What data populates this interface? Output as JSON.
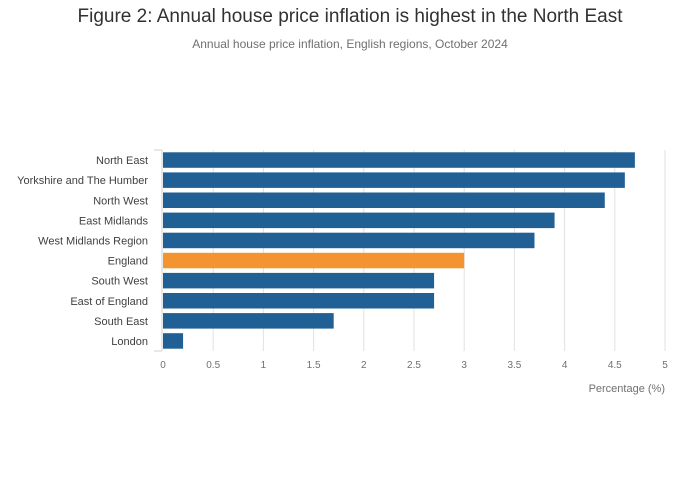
{
  "title": "Figure 2: Annual house price inflation is highest in the North East",
  "subtitle": "Annual house price inflation, English regions, October 2024",
  "colors": {
    "bar": "#206095",
    "highlight": "#f39431",
    "grid": "#e2e2e3"
  },
  "chart_data": {
    "type": "bar",
    "orientation": "horizontal",
    "categories": [
      "North East",
      "Yorkshire and The Humber",
      "North West",
      "East Midlands",
      "West Midlands Region",
      "England",
      "South West",
      "East of England",
      "South East",
      "London"
    ],
    "values": [
      4.7,
      4.6,
      4.4,
      3.9,
      3.7,
      3.0,
      2.7,
      2.7,
      1.7,
      0.2
    ],
    "highlight": "England",
    "xlabel": "Percentage (%)",
    "ylabel": "",
    "xlim": [
      0,
      5
    ],
    "xticks": [
      "0",
      "0.5",
      "1",
      "1.5",
      "2",
      "2.5",
      "3",
      "3.5",
      "4",
      "4.5",
      "5"
    ],
    "grid": true,
    "legend": "none"
  }
}
